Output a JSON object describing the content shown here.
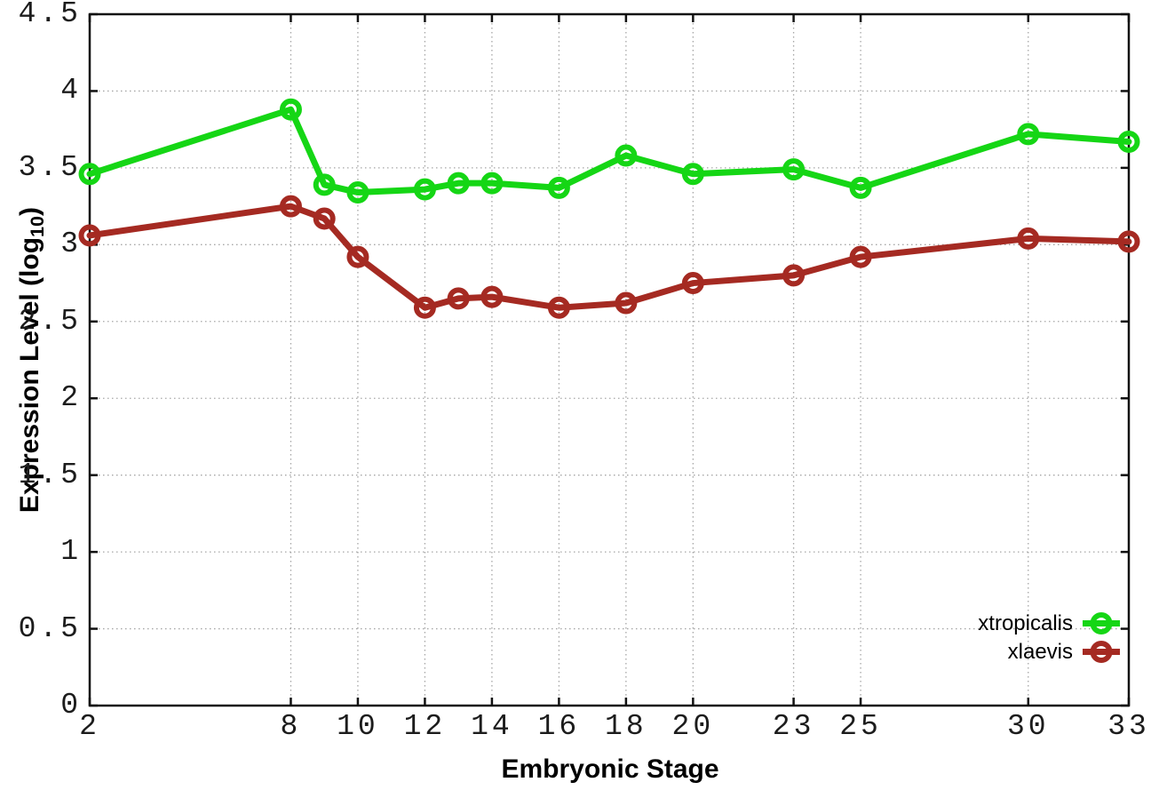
{
  "chart_data": {
    "type": "line",
    "title": "",
    "xlabel": "Embryonic Stage",
    "ylabel": "Expression Level (log10)",
    "ylabel_parts": {
      "pre": "Expression Level (log",
      "sub": "10",
      "post": ")"
    },
    "x": [
      2,
      8,
      9,
      10,
      12,
      13,
      14,
      16,
      18,
      20,
      23,
      25,
      30,
      33
    ],
    "series": [
      {
        "name": "xtropicalis",
        "color": "#15d615",
        "values": [
          3.46,
          3.88,
          3.39,
          3.34,
          3.36,
          3.4,
          3.4,
          3.37,
          3.58,
          3.46,
          3.49,
          3.37,
          3.72,
          3.67
        ]
      },
      {
        "name": "xlaevis",
        "color": "#a52a22",
        "values": [
          3.06,
          3.25,
          3.17,
          2.92,
          2.59,
          2.65,
          2.66,
          2.59,
          2.62,
          2.75,
          2.8,
          2.92,
          3.04,
          3.02
        ]
      }
    ],
    "xticks": [
      "2",
      "8",
      "10",
      "12",
      "14",
      "16",
      "18",
      "20",
      "23",
      "25",
      "30",
      "33"
    ],
    "yticks": [
      "0",
      "0.5",
      "1",
      "1.5",
      "2",
      "2.5",
      "3",
      "3.5",
      "4",
      "4.5"
    ],
    "xlim": [
      2,
      33
    ],
    "ylim": [
      0,
      4.5
    ],
    "grid": "dotted",
    "grid_color": "#a6a6a6",
    "axis_color": "#111111",
    "legend_position": "inside-bottom-right"
  }
}
